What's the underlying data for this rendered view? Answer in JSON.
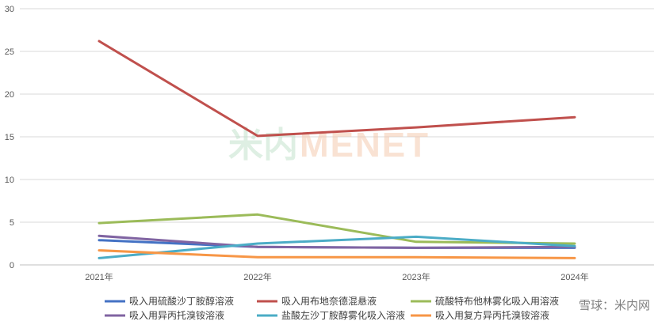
{
  "chart_data": {
    "type": "line",
    "categories": [
      "2021年",
      "2022年",
      "2023年",
      "2024年"
    ],
    "ylim": [
      0,
      30
    ],
    "yticks": [
      0,
      5,
      10,
      15,
      20,
      25,
      30
    ],
    "grid": true,
    "legend_position": "bottom",
    "series": [
      {
        "name": "吸入用硫酸沙丁胺醇溶液",
        "color": "#4472c4",
        "values": [
          2.9,
          2.1,
          2.0,
          2.0
        ]
      },
      {
        "name": "吸入用布地奈德混悬液",
        "color": "#c0504d",
        "values": [
          26.2,
          15.1,
          16.1,
          17.3
        ]
      },
      {
        "name": "硫酸特布他林雾化吸入用溶液",
        "color": "#9bbb59",
        "values": [
          4.9,
          5.9,
          2.7,
          2.5
        ]
      },
      {
        "name": "吸入用异丙托溴铵溶液",
        "color": "#8064a2",
        "values": [
          3.4,
          2.1,
          2.0,
          2.1
        ]
      },
      {
        "name": "盐酸左沙丁胺醇雾化吸入溶液",
        "color": "#4bacc6",
        "values": [
          0.8,
          2.5,
          3.3,
          2.2
        ]
      },
      {
        "name": "吸入用复方异丙托溴铵溶液",
        "color": "#f79646",
        "values": [
          1.7,
          0.9,
          0.9,
          0.8
        ]
      }
    ]
  },
  "watermark": {
    "cn": "米内",
    "en": "MENET"
  },
  "footer_mark": "雪球：米内网"
}
